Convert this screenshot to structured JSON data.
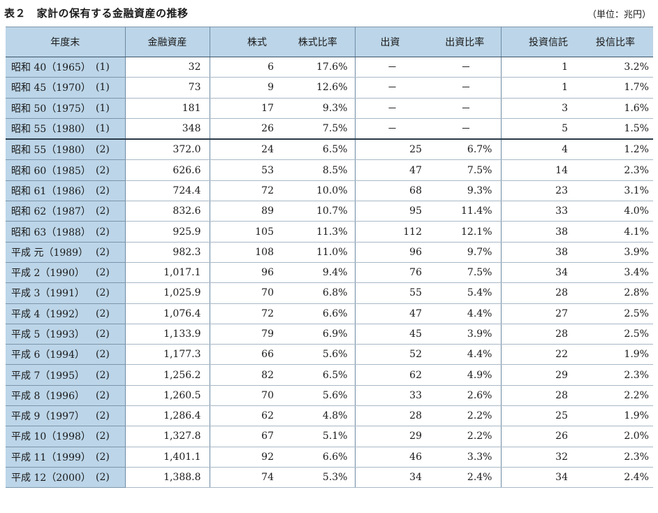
{
  "header": {
    "title": "表２　家計の保有する金融資産の推移",
    "unit": "（単位：兆円）"
  },
  "table": {
    "columns": [
      "年度末",
      "金融資産",
      "株式",
      "株式比率",
      "出資",
      "出資比率",
      "投資信託",
      "投信比率"
    ],
    "rows": [
      {
        "label": "昭和 40（1965）",
        "series": "(1)",
        "assets": "32",
        "stocks": "6",
        "stock_ratio": "17.6%",
        "investment": "－",
        "investment_ratio": "－",
        "funds": "1",
        "fund_ratio": "3.2%"
      },
      {
        "label": "昭和 45（1970）",
        "series": "(1)",
        "assets": "73",
        "stocks": "9",
        "stock_ratio": "12.6%",
        "investment": "－",
        "investment_ratio": "－",
        "funds": "1",
        "fund_ratio": "1.7%"
      },
      {
        "label": "昭和 50（1975）",
        "series": "(1)",
        "assets": "181",
        "stocks": "17",
        "stock_ratio": "9.3%",
        "investment": "－",
        "investment_ratio": "－",
        "funds": "3",
        "fund_ratio": "1.6%"
      },
      {
        "label": "昭和 55（1980）",
        "series": "(1)",
        "assets": "348",
        "stocks": "26",
        "stock_ratio": "7.5%",
        "investment": "－",
        "investment_ratio": "－",
        "funds": "5",
        "fund_ratio": "1.5%"
      },
      {
        "label": "昭和 55（1980）",
        "series": "(2)",
        "assets": "372.0",
        "stocks": "24",
        "stock_ratio": "6.5%",
        "investment": "25",
        "investment_ratio": "6.7%",
        "funds": "4",
        "fund_ratio": "1.2%"
      },
      {
        "label": "昭和 60（1985）",
        "series": "(2)",
        "assets": "626.6",
        "stocks": "53",
        "stock_ratio": "8.5%",
        "investment": "47",
        "investment_ratio": "7.5%",
        "funds": "14",
        "fund_ratio": "2.3%"
      },
      {
        "label": "昭和 61（1986）",
        "series": "(2)",
        "assets": "724.4",
        "stocks": "72",
        "stock_ratio": "10.0%",
        "investment": "68",
        "investment_ratio": "9.3%",
        "funds": "23",
        "fund_ratio": "3.1%"
      },
      {
        "label": "昭和 62（1987）",
        "series": "(2)",
        "assets": "832.6",
        "stocks": "89",
        "stock_ratio": "10.7%",
        "investment": "95",
        "investment_ratio": "11.4%",
        "funds": "33",
        "fund_ratio": "4.0%"
      },
      {
        "label": "昭和 63（1988）",
        "series": "(2)",
        "assets": "925.9",
        "stocks": "105",
        "stock_ratio": "11.3%",
        "investment": "112",
        "investment_ratio": "12.1%",
        "funds": "38",
        "fund_ratio": "4.1%"
      },
      {
        "label": "平成 元（1989）",
        "series": "(2)",
        "assets": "982.3",
        "stocks": "108",
        "stock_ratio": "11.0%",
        "investment": "96",
        "investment_ratio": "9.7%",
        "funds": "38",
        "fund_ratio": "3.9%"
      },
      {
        "label": "平成 2（1990）",
        "series": "(2)",
        "assets": "1,017.1",
        "stocks": "96",
        "stock_ratio": "9.4%",
        "investment": "76",
        "investment_ratio": "7.5%",
        "funds": "34",
        "fund_ratio": "3.4%"
      },
      {
        "label": "平成 3（1991）",
        "series": "(2)",
        "assets": "1,025.9",
        "stocks": "70",
        "stock_ratio": "6.8%",
        "investment": "55",
        "investment_ratio": "5.4%",
        "funds": "28",
        "fund_ratio": "2.8%"
      },
      {
        "label": "平成 4（1992）",
        "series": "(2)",
        "assets": "1,076.4",
        "stocks": "72",
        "stock_ratio": "6.6%",
        "investment": "47",
        "investment_ratio": "4.4%",
        "funds": "27",
        "fund_ratio": "2.5%"
      },
      {
        "label": "平成 5（1993）",
        "series": "(2)",
        "assets": "1,133.9",
        "stocks": "79",
        "stock_ratio": "6.9%",
        "investment": "45",
        "investment_ratio": "3.9%",
        "funds": "28",
        "fund_ratio": "2.5%"
      },
      {
        "label": "平成 6（1994）",
        "series": "(2)",
        "assets": "1,177.3",
        "stocks": "66",
        "stock_ratio": "5.6%",
        "investment": "52",
        "investment_ratio": "4.4%",
        "funds": "22",
        "fund_ratio": "1.9%"
      },
      {
        "label": "平成 7（1995）",
        "series": "(2)",
        "assets": "1,256.2",
        "stocks": "82",
        "stock_ratio": "6.5%",
        "investment": "62",
        "investment_ratio": "4.9%",
        "funds": "29",
        "fund_ratio": "2.3%"
      },
      {
        "label": "平成 8（1996）",
        "series": "(2)",
        "assets": "1,260.5",
        "stocks": "70",
        "stock_ratio": "5.6%",
        "investment": "33",
        "investment_ratio": "2.6%",
        "funds": "28",
        "fund_ratio": "2.2%"
      },
      {
        "label": "平成 9（1997）",
        "series": "(2)",
        "assets": "1,286.4",
        "stocks": "62",
        "stock_ratio": "4.8%",
        "investment": "28",
        "investment_ratio": "2.2%",
        "funds": "25",
        "fund_ratio": "1.9%"
      },
      {
        "label": "平成 10（1998）",
        "series": "(2)",
        "assets": "1,327.8",
        "stocks": "67",
        "stock_ratio": "5.1%",
        "investment": "29",
        "investment_ratio": "2.2%",
        "funds": "26",
        "fund_ratio": "2.0%"
      },
      {
        "label": "平成 11（1999）",
        "series": "(2)",
        "assets": "1,401.1",
        "stocks": "92",
        "stock_ratio": "6.6%",
        "investment": "46",
        "investment_ratio": "3.3%",
        "funds": "32",
        "fund_ratio": "2.3%"
      },
      {
        "label": "平成 12（2000）",
        "series": "(2)",
        "assets": "1,388.8",
        "stocks": "74",
        "stock_ratio": "5.3%",
        "investment": "34",
        "investment_ratio": "2.4%",
        "funds": "34",
        "fund_ratio": "2.4%"
      }
    ]
  }
}
